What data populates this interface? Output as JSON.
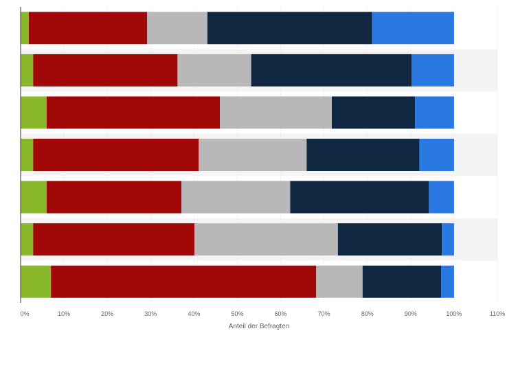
{
  "chart_data": {
    "type": "bar",
    "orientation": "horizontal",
    "stacked": true,
    "xlabel": "Anteil der Befragten",
    "xlim": [
      0,
      110
    ],
    "xticks": [
      "0%",
      "10%",
      "20%",
      "30%",
      "40%",
      "50%",
      "60%",
      "70%",
      "80%",
      "90%",
      "100%",
      "110%"
    ],
    "grid": true,
    "rows": 7,
    "series": [
      {
        "color": "#8ab82b",
        "values": [
          1.9,
          2.9,
          6.0,
          2.9,
          6.0,
          2.9,
          7.0
        ]
      },
      {
        "color": "#a10808",
        "values": [
          27.3,
          33.3,
          40.0,
          38.2,
          31.1,
          37.2,
          61.2
        ]
      },
      {
        "color": "#b8b8b8",
        "values": [
          13.9,
          17.0,
          25.8,
          24.9,
          25.1,
          33.1,
          10.7
        ]
      },
      {
        "color": "#0f2740",
        "values": [
          38.0,
          37.0,
          19.2,
          26.0,
          32.0,
          24.0,
          18.1
        ]
      },
      {
        "color": "#2a79e0",
        "values": [
          18.9,
          9.8,
          9.0,
          8.0,
          5.8,
          2.8,
          3.0
        ]
      }
    ]
  }
}
